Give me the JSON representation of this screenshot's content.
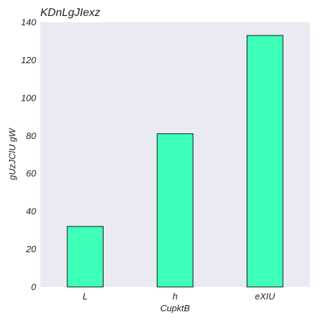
{
  "chart_data": {
    "type": "bar",
    "title": "KDnLgJIexz",
    "xlabel": "CupktB",
    "ylabel": "gUzJClU gW",
    "categories": [
      "L",
      "h",
      "eXIU"
    ],
    "values": [
      32,
      81,
      133
    ],
    "ylim": [
      0,
      140
    ],
    "yticks": [
      0,
      20,
      40,
      60,
      80,
      100,
      120,
      140
    ],
    "grid": false,
    "legend": "none",
    "colors": {
      "bar_fill": "#3dffb8",
      "bar_edge": "#000000",
      "plot_background": "#eaeaf2"
    }
  }
}
